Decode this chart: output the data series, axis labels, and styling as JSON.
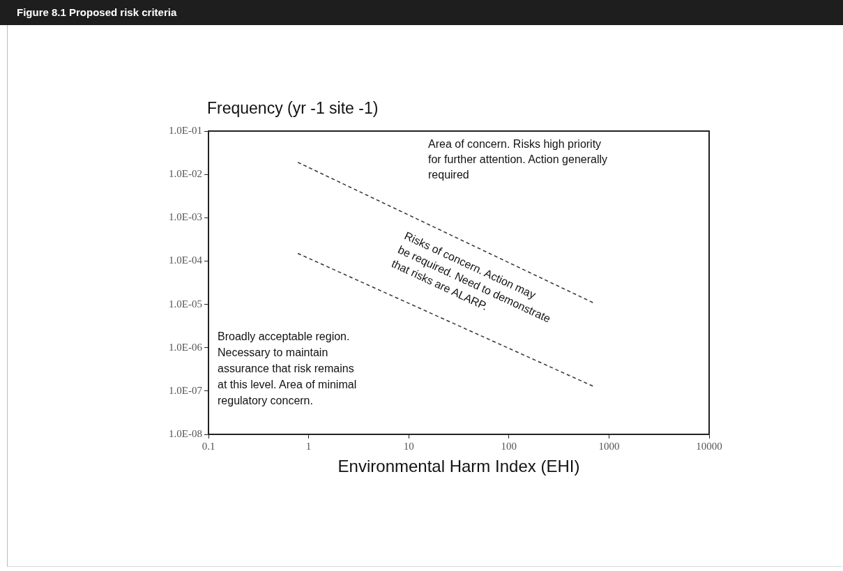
{
  "chart_data": {
    "type": "line",
    "title": "Figure 8.1  Proposed risk criteria",
    "ylabel": "Frequency (yr -1 site -1)",
    "xlabel": "Environmental Harm Index (EHI)",
    "log": "xy",
    "grid": false,
    "legend": false,
    "marker": "none",
    "line_style": "dashed",
    "xlim": [
      0.1,
      10000
    ],
    "xticks": [
      0.1,
      1,
      10,
      100,
      1000,
      10000
    ],
    "ylim": [
      1e-08,
      0.1
    ],
    "yticks": [
      {
        "value": 1e-08,
        "label": "1.0E-08"
      },
      {
        "value": 1e-07,
        "label": "1.0E-07"
      },
      {
        "value": 1e-06,
        "label": "1.0E-06"
      },
      {
        "value": 1e-05,
        "label": "1.0E-05"
      },
      {
        "value": 0.0001,
        "label": "1.0E-04"
      },
      {
        "value": 0.001,
        "label": "1.0E-03"
      },
      {
        "value": 0.01,
        "label": "1.0E-02"
      },
      {
        "value": 0.1,
        "label": "1.0E-01"
      }
    ],
    "x": [
      0.78,
      690
    ],
    "series": [
      {
        "color": "#333333",
        "values": [
          0.019,
          1.1e-05
        ]
      },
      {
        "color": "#333333",
        "values": [
          0.00015,
          1.3e-07
        ]
      }
    ],
    "annotations": [
      "Area of concern. Risks high priority\nfor further attention. Action generally\nrequired",
      "Risks of concern. Action may\nbe required. Need to demonstrate\nthat risks are ALARP.",
      "Broadly acceptable region.\nNecessary to maintain\nassurance that risk remains\nat this level. Area of minimal\nregulatory concern."
    ]
  }
}
